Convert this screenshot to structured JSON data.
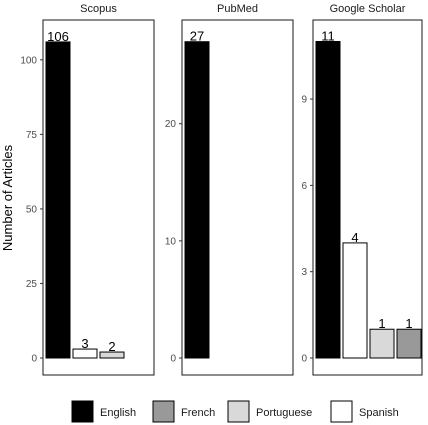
{
  "chart_data": {
    "type": "bar",
    "ylabel": "Number of Articles",
    "colors": {
      "English": "#000000",
      "French": "#999999",
      "Portuguese": "#d9d9d9",
      "Spanish": "#ffffff"
    },
    "legend": {
      "position": "bottom",
      "entries": [
        "English",
        "French",
        "Portuguese",
        "Spanish"
      ]
    },
    "panels": [
      {
        "title": "Scopus",
        "ylim": [
          0,
          110
        ],
        "yticks": [
          "0",
          "25",
          "50",
          "75",
          "100"
        ],
        "ytick_values": [
          0,
          25,
          50,
          75,
          100
        ],
        "bars": [
          {
            "category": "English",
            "value": 106,
            "label": "106"
          },
          {
            "category": "Spanish",
            "value": 3,
            "label": "3"
          },
          {
            "category": "Portuguese",
            "value": 2,
            "label": "2"
          }
        ]
      },
      {
        "title": "PubMed",
        "ylim": [
          0,
          28
        ],
        "yticks": [
          "0",
          "10",
          "20"
        ],
        "ytick_values": [
          0,
          10,
          20
        ],
        "bars": [
          {
            "category": "English",
            "value": 27,
            "label": "27"
          }
        ]
      },
      {
        "title": "Google Scholar",
        "ylim": [
          0,
          11.4
        ],
        "yticks": [
          "0",
          "3",
          "6",
          "9"
        ],
        "ytick_values": [
          0,
          3,
          6,
          9
        ],
        "bars": [
          {
            "category": "English",
            "value": 11,
            "label": "11"
          },
          {
            "category": "Spanish",
            "value": 4,
            "label": "4"
          },
          {
            "category": "Portuguese",
            "value": 1,
            "label": "1"
          },
          {
            "category": "French",
            "value": 1,
            "label": "1"
          }
        ]
      }
    ]
  }
}
